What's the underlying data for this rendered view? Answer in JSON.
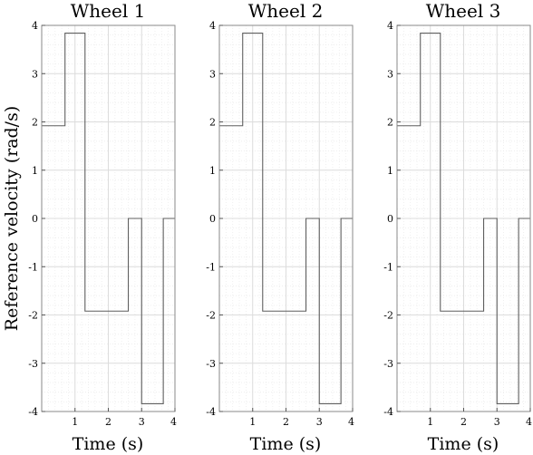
{
  "figure": {
    "ylabel": "Reference velocity (rad/s)"
  },
  "chart_data": [
    {
      "type": "line",
      "title": "Wheel 1",
      "xlabel": "Time (s)",
      "ylabel": "Reference velocity (rad/s)",
      "xlim": [
        0,
        4
      ],
      "ylim": [
        -4,
        4
      ],
      "xticks": [
        1,
        2,
        3,
        4
      ],
      "yticks": [
        -4,
        -3,
        -2,
        -1,
        0,
        1,
        2,
        3,
        4
      ],
      "grid": true,
      "minor_grid": true,
      "series": [
        {
          "color": "#5f5f5f",
          "step": true,
          "x": [
            0,
            0.7,
            0.7,
            1.3,
            1.3,
            2.6,
            2.6,
            3.0,
            3.0,
            3.65,
            3.65,
            4.0
          ],
          "y": [
            1.92,
            1.92,
            3.84,
            3.84,
            -1.92,
            -1.92,
            0,
            0,
            -3.84,
            -3.84,
            0,
            0
          ]
        }
      ]
    },
    {
      "type": "line",
      "title": "Wheel 2",
      "xlabel": "Time (s)",
      "ylabel": "",
      "xlim": [
        0,
        4
      ],
      "ylim": [
        -4,
        4
      ],
      "xticks": [
        1,
        2,
        3,
        4
      ],
      "yticks": [
        -4,
        -3,
        -2,
        -1,
        0,
        1,
        2,
        3,
        4
      ],
      "grid": true,
      "minor_grid": true,
      "series": [
        {
          "color": "#5f5f5f",
          "step": true,
          "x": [
            0,
            0.7,
            0.7,
            1.3,
            1.3,
            2.6,
            2.6,
            3.0,
            3.0,
            3.65,
            3.65,
            4.0
          ],
          "y": [
            1.92,
            1.92,
            3.84,
            3.84,
            -1.92,
            -1.92,
            0,
            0,
            -3.84,
            -3.84,
            0,
            0
          ]
        }
      ]
    },
    {
      "type": "line",
      "title": "Wheel 3",
      "xlabel": "Time (s)",
      "ylabel": "",
      "xlim": [
        0,
        4
      ],
      "ylim": [
        -4,
        4
      ],
      "xticks": [
        1,
        2,
        3,
        4
      ],
      "yticks": [
        -4,
        -3,
        -2,
        -1,
        0,
        1,
        2,
        3,
        4
      ],
      "grid": true,
      "minor_grid": true,
      "series": [
        {
          "color": "#5f5f5f",
          "step": true,
          "x": [
            0,
            0.7,
            0.7,
            1.3,
            1.3,
            2.6,
            2.6,
            3.0,
            3.0,
            3.65,
            3.65,
            4.0
          ],
          "y": [
            1.92,
            1.92,
            3.84,
            3.84,
            -1.92,
            -1.92,
            0,
            0,
            -3.84,
            -3.84,
            0,
            0
          ]
        }
      ]
    }
  ]
}
